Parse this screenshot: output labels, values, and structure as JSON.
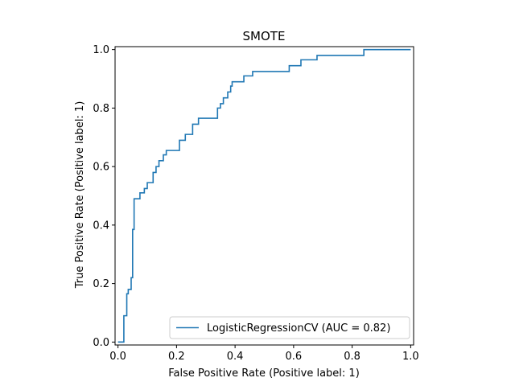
{
  "chart_data": {
    "type": "line",
    "title": "SMOTE",
    "xlabel": "False Positive Rate (Positive label: 1)",
    "ylabel": "True Positive Rate (Positive label: 1)",
    "xlim": [
      -0.01,
      1.01
    ],
    "ylim": [
      -0.01,
      1.01
    ],
    "xticks": [
      0.0,
      0.2,
      0.4,
      0.6,
      0.8,
      1.0
    ],
    "yticks": [
      0.0,
      0.2,
      0.4,
      0.6,
      0.8,
      1.0
    ],
    "xtick_labels": [
      "0.0",
      "0.2",
      "0.4",
      "0.6",
      "0.8",
      "1.0"
    ],
    "ytick_labels": [
      "0.0",
      "0.2",
      "0.4",
      "0.6",
      "0.8",
      "1.0"
    ],
    "grid": false,
    "legend_position": "bottom-right",
    "series": [
      {
        "name": "LogisticRegressionCV (AUC = 0.82)",
        "color": "#1f77b4",
        "step": true,
        "x": [
          0.0,
          0.02,
          0.02,
          0.03,
          0.03,
          0.035,
          0.035,
          0.045,
          0.045,
          0.05,
          0.05,
          0.055,
          0.055,
          0.06,
          0.06,
          0.075,
          0.075,
          0.09,
          0.09,
          0.1,
          0.1,
          0.12,
          0.12,
          0.13,
          0.13,
          0.14,
          0.14,
          0.155,
          0.155,
          0.165,
          0.165,
          0.21,
          0.21,
          0.23,
          0.23,
          0.255,
          0.255,
          0.275,
          0.275,
          0.34,
          0.34,
          0.35,
          0.35,
          0.36,
          0.36,
          0.375,
          0.375,
          0.385,
          0.385,
          0.39,
          0.39,
          0.4,
          0.4,
          0.43,
          0.43,
          0.46,
          0.46,
          0.585,
          0.585,
          0.625,
          0.625,
          0.68,
          0.68,
          0.84,
          0.84,
          1.0
        ],
        "y": [
          0.0,
          0.0,
          0.09,
          0.09,
          0.165,
          0.165,
          0.18,
          0.18,
          0.22,
          0.22,
          0.385,
          0.385,
          0.49,
          0.49,
          0.49,
          0.49,
          0.51,
          0.51,
          0.525,
          0.525,
          0.545,
          0.545,
          0.58,
          0.58,
          0.6,
          0.6,
          0.62,
          0.62,
          0.64,
          0.64,
          0.655,
          0.655,
          0.69,
          0.69,
          0.71,
          0.71,
          0.745,
          0.745,
          0.765,
          0.765,
          0.8,
          0.8,
          0.815,
          0.815,
          0.835,
          0.835,
          0.855,
          0.855,
          0.875,
          0.875,
          0.89,
          0.89,
          0.89,
          0.89,
          0.91,
          0.91,
          0.925,
          0.925,
          0.945,
          0.945,
          0.965,
          0.965,
          0.98,
          0.98,
          1.0,
          1.0
        ]
      }
    ]
  }
}
